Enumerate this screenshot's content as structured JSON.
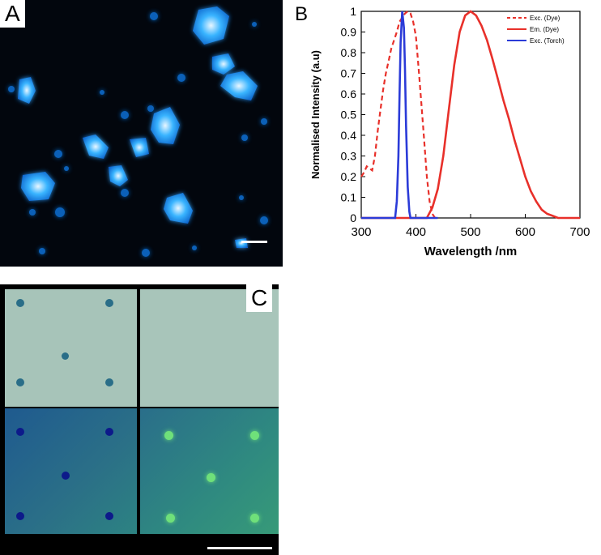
{
  "panels": {
    "a": {
      "label": "A"
    },
    "b": {
      "label": "B"
    },
    "c": {
      "label": "C"
    }
  },
  "colors": {
    "dye": "#e8302a",
    "torch": "#2b3bd8",
    "crystal": "#1a9cff",
    "plate_top": "#a7c4b9",
    "plate_bottom_left": "#24628f",
    "plate_bottom_right": "#2f8a80"
  },
  "chart_data": {
    "type": "line",
    "title": "",
    "xlabel": "Wavelength /nm",
    "ylabel": "Normalised Intensity (a.u)",
    "xlim": [
      300,
      700
    ],
    "ylim": [
      0,
      1
    ],
    "xticks": [
      "300",
      "400",
      "500",
      "600",
      "700"
    ],
    "yticks": [
      "0",
      "0.1",
      "0.2",
      "0.3",
      "0.4",
      "0.5",
      "0.6",
      "0.7",
      "0.8",
      "0.9",
      "1"
    ],
    "legend_position": "top-right",
    "grid": false,
    "series": [
      {
        "name": "Exc. (Dye)",
        "style": "dashed",
        "color": "#e8302a",
        "x": [
          300,
          305,
          310,
          315,
          320,
          325,
          330,
          335,
          340,
          345,
          350,
          355,
          360,
          365,
          370,
          375,
          380,
          385,
          390,
          395,
          400,
          405,
          410,
          415,
          420,
          425,
          430,
          435,
          440
        ],
        "y": [
          0.2,
          0.22,
          0.25,
          0.24,
          0.23,
          0.3,
          0.42,
          0.52,
          0.62,
          0.7,
          0.76,
          0.82,
          0.86,
          0.9,
          0.95,
          0.97,
          0.99,
          1.0,
          0.99,
          0.95,
          0.88,
          0.72,
          0.55,
          0.38,
          0.2,
          0.08,
          0.02,
          0.0,
          0.0
        ]
      },
      {
        "name": "Em. (Dye)",
        "style": "solid",
        "color": "#e8302a",
        "x": [
          300,
          420,
          430,
          440,
          450,
          460,
          470,
          480,
          490,
          500,
          510,
          520,
          530,
          540,
          550,
          560,
          570,
          580,
          590,
          600,
          610,
          620,
          630,
          640,
          650,
          660,
          670,
          700
        ],
        "y": [
          0.0,
          0.0,
          0.05,
          0.14,
          0.3,
          0.52,
          0.74,
          0.9,
          0.98,
          1.0,
          0.98,
          0.93,
          0.86,
          0.77,
          0.67,
          0.57,
          0.48,
          0.38,
          0.29,
          0.2,
          0.13,
          0.08,
          0.04,
          0.02,
          0.01,
          0.0,
          0.0,
          0.0
        ]
      },
      {
        "name": "Exc. (Torch)",
        "style": "solid",
        "color": "#2b3bd8",
        "x": [
          300,
          362,
          365,
          368,
          370,
          372,
          375,
          378,
          380,
          382,
          385,
          388,
          390,
          440
        ],
        "y": [
          0.0,
          0.0,
          0.08,
          0.3,
          0.6,
          0.85,
          1.0,
          0.92,
          0.72,
          0.45,
          0.15,
          0.03,
          0.0,
          0.0
        ]
      }
    ]
  }
}
